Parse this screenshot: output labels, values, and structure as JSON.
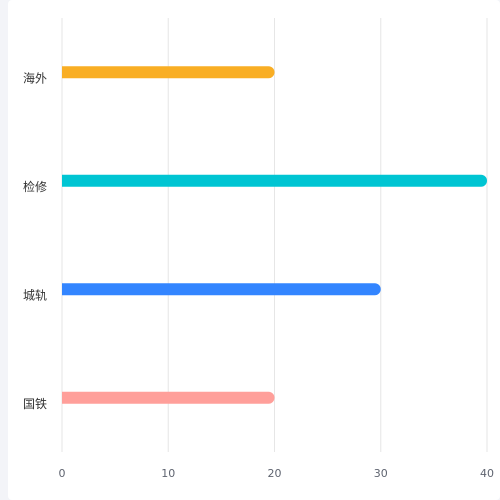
{
  "chart_data": {
    "type": "bar",
    "orientation": "horizontal",
    "categories": [
      "国铁",
      "城轨",
      "检修",
      "海外"
    ],
    "values": [
      20,
      30,
      40,
      20
    ],
    "colors": [
      "#ff9f9a",
      "#3385ff",
      "#00c5d3",
      "#f9ae24"
    ],
    "xlim": [
      0,
      40
    ],
    "xticks": [
      "0",
      "10",
      "20",
      "30",
      "40"
    ],
    "title": "",
    "xlabel": "",
    "ylabel": "",
    "grid": "vertical",
    "legend": "none"
  },
  "colors": {
    "background": "#f3f4f8",
    "card": "#ffffff",
    "gridline": "#e6e6e6",
    "tick_text": "#5f6470",
    "category_text": "#333333"
  }
}
